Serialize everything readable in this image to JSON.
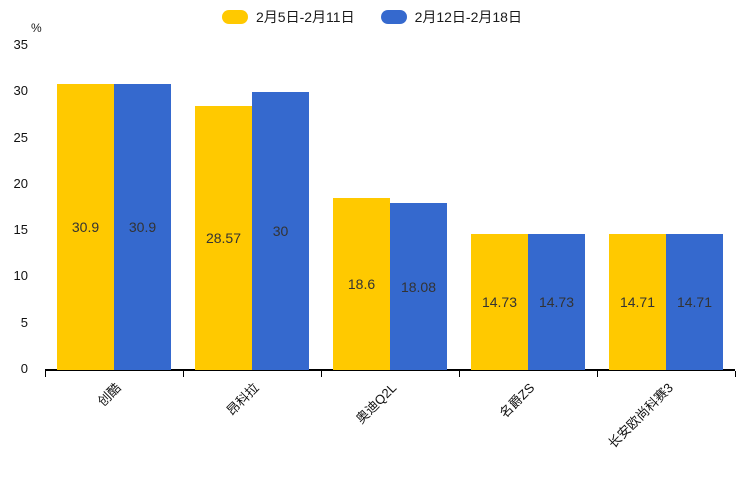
{
  "chart_data": {
    "type": "bar",
    "title": "",
    "unit": "%",
    "categories": [
      "创酷",
      "昂科拉",
      "奥迪Q2L",
      "名爵ZS",
      "长安欧尚科赛3"
    ],
    "series": [
      {
        "name": "2月5日-2月11日",
        "color": "#FFC900",
        "values": [
          30.9,
          28.57,
          18.6,
          14.73,
          14.71
        ]
      },
      {
        "name": "2月12日-2月18日",
        "color": "#3569CE",
        "values": [
          30.9,
          30,
          18.08,
          14.73,
          14.71
        ]
      }
    ],
    "value_labels": [
      [
        "30.9",
        "28.57",
        "18.6",
        "14.73",
        "14.71"
      ],
      [
        "30.9",
        "30",
        "18.08",
        "14.73",
        "14.71"
      ]
    ],
    "ylabel": "%",
    "xlabel": "",
    "ylim": [
      0,
      35
    ],
    "ytick_step": 5,
    "ytick_labels": [
      "0",
      "5",
      "10",
      "15",
      "20",
      "25",
      "30",
      "35"
    ],
    "grid": false,
    "legend_position": "top-center",
    "colors": {
      "bar_yellow": "#FFC900",
      "bar_blue": "#3569CE",
      "value_text": "#333333",
      "axis_text": "#111111",
      "axis_line": "#000000",
      "background": "#FFFFFF"
    }
  }
}
